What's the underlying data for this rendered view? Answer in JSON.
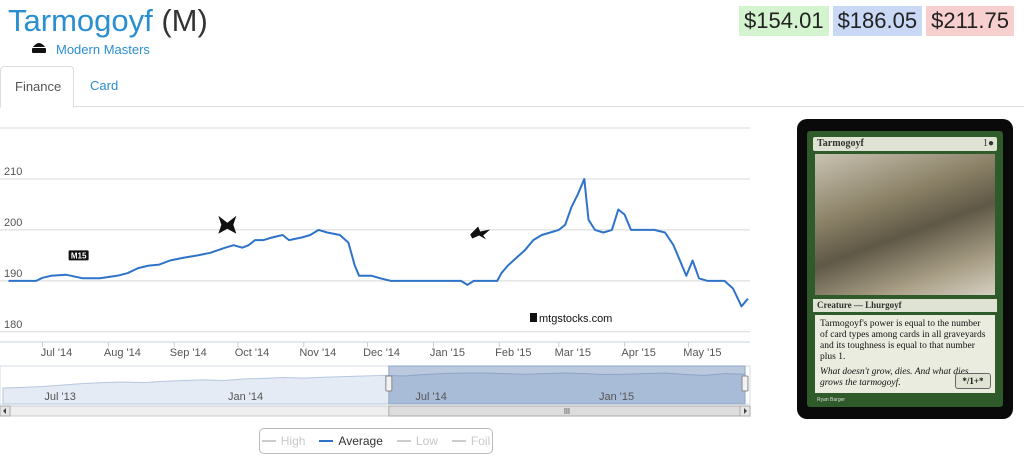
{
  "header": {
    "card_name": "Tarmogoyf",
    "rarity": "(M)",
    "set_icon": "modern-masters-set-icon",
    "set_name": "Modern Masters"
  },
  "prices": {
    "low": "$154.01",
    "average": "$186.05",
    "high": "$211.75",
    "colors": {
      "low": "#d4f4cf",
      "average": "#c9d8f5",
      "high": "#f8cfcf"
    }
  },
  "tabs": [
    {
      "label": "Finance",
      "active": true
    },
    {
      "label": "Card",
      "active": false
    }
  ],
  "chart_data": {
    "type": "line",
    "x_tick_labels": [
      "Jul '14",
      "Aug '14",
      "Sep '14",
      "Oct '14",
      "Nov '14",
      "Dec '14",
      "Jan '15",
      "Feb '15",
      "Mar '15",
      "Apr '15",
      "May '15"
    ],
    "y_tick_labels": [
      "180",
      "190",
      "200",
      "210"
    ],
    "ylim": [
      178,
      220
    ],
    "grid": true,
    "series": [
      {
        "name": "Average",
        "color": "#2f73c8",
        "points": [
          [
            "2014-06-15",
            190
          ],
          [
            "2014-06-28",
            190
          ],
          [
            "2014-07-01",
            190.6
          ],
          [
            "2014-07-05",
            191
          ],
          [
            "2014-07-12",
            191.2
          ],
          [
            "2014-07-20",
            190.5
          ],
          [
            "2014-07-28",
            190.5
          ],
          [
            "2014-08-05",
            191
          ],
          [
            "2014-08-10",
            191.5
          ],
          [
            "2014-08-15",
            192.5
          ],
          [
            "2014-08-20",
            193
          ],
          [
            "2014-08-25",
            193.2
          ],
          [
            "2014-08-30",
            194
          ],
          [
            "2014-09-05",
            194.5
          ],
          [
            "2014-09-12",
            195
          ],
          [
            "2014-09-18",
            195.5
          ],
          [
            "2014-09-25",
            196.5
          ],
          [
            "2014-09-29",
            197
          ],
          [
            "2014-10-03",
            196.5
          ],
          [
            "2014-10-06",
            197
          ],
          [
            "2014-10-09",
            198
          ],
          [
            "2014-10-13",
            198
          ],
          [
            "2014-10-17",
            198.5
          ],
          [
            "2014-10-22",
            199
          ],
          [
            "2014-10-25",
            198
          ],
          [
            "2014-10-31",
            198.5
          ],
          [
            "2014-11-04",
            199
          ],
          [
            "2014-11-08",
            200
          ],
          [
            "2014-11-12",
            199.5
          ],
          [
            "2014-11-18",
            199
          ],
          [
            "2014-11-22",
            197.5
          ],
          [
            "2014-11-25",
            193
          ],
          [
            "2014-11-27",
            191
          ],
          [
            "2014-12-03",
            191
          ],
          [
            "2014-12-07",
            190.5
          ],
          [
            "2014-12-12",
            190
          ],
          [
            "2014-12-20",
            190
          ],
          [
            "2014-12-30",
            190
          ],
          [
            "2015-01-08",
            190
          ],
          [
            "2015-01-14",
            190
          ],
          [
            "2015-01-17",
            189.2
          ],
          [
            "2015-01-20",
            190
          ],
          [
            "2015-01-25",
            190
          ],
          [
            "2015-01-31",
            190
          ],
          [
            "2015-02-02",
            191.5
          ],
          [
            "2015-02-05",
            193
          ],
          [
            "2015-02-09",
            194.5
          ],
          [
            "2015-02-13",
            196
          ],
          [
            "2015-02-17",
            198
          ],
          [
            "2015-02-21",
            199
          ],
          [
            "2015-02-25",
            199.5
          ],
          [
            "2015-03-01",
            200
          ],
          [
            "2015-03-04",
            201
          ],
          [
            "2015-03-07",
            204.5
          ],
          [
            "2015-03-10",
            207
          ],
          [
            "2015-03-13",
            210
          ],
          [
            "2015-03-15",
            202
          ],
          [
            "2015-03-18",
            200
          ],
          [
            "2015-03-22",
            199.5
          ],
          [
            "2015-03-26",
            200
          ],
          [
            "2015-03-29",
            204
          ],
          [
            "2015-04-01",
            203
          ],
          [
            "2015-04-04",
            200
          ],
          [
            "2015-04-10",
            200
          ],
          [
            "2015-04-15",
            200
          ],
          [
            "2015-04-20",
            199.5
          ],
          [
            "2015-04-24",
            197
          ],
          [
            "2015-04-27",
            194
          ],
          [
            "2015-04-30",
            191
          ],
          [
            "2015-05-03",
            194
          ],
          [
            "2015-05-06",
            190.5
          ],
          [
            "2015-05-10",
            190
          ],
          [
            "2015-05-18",
            190
          ],
          [
            "2015-05-22",
            188.5
          ],
          [
            "2015-05-26",
            185
          ],
          [
            "2015-05-29",
            186.5
          ]
        ]
      }
    ],
    "annotations": [
      {
        "label": "M15",
        "date": "2014-07-18",
        "value": 195
      },
      {
        "label": "Khans of Tarkir",
        "date": "2014-09-26",
        "value": 201
      },
      {
        "label": "Fate Reforged",
        "date": "2015-01-23",
        "value": 199.5
      }
    ],
    "watermark": "mtgstocks.com",
    "navigator": {
      "x_tick_labels": [
        "Jul '13",
        "Jan '14",
        "Jul '14",
        "Jan '15"
      ],
      "values": [
        0.6,
        0.58,
        0.55,
        0.5,
        0.45,
        0.42,
        0.4,
        0.42,
        0.38,
        0.35,
        0.33,
        0.35,
        0.3,
        0.28,
        0.25,
        0.27,
        0.24,
        0.22,
        0.2,
        0.18,
        0.2,
        0.15,
        0.12,
        0.1,
        0.1,
        0.12,
        0.14,
        0.12,
        0.1,
        0.12,
        0.15,
        0.14,
        0.12,
        0.1,
        0.15,
        0.18,
        0.12,
        0.14
      ],
      "selected_range": [
        0.52,
        1.0
      ]
    },
    "legend": [
      {
        "label": "High",
        "active": false
      },
      {
        "label": "Average",
        "active": true
      },
      {
        "label": "Low",
        "active": false
      },
      {
        "label": "Foil",
        "active": false
      }
    ]
  },
  "card_image": {
    "name": "Tarmogoyf",
    "mana_cost": "1●",
    "type_line": "Creature — Lhurgoyf",
    "rules_text": "Tarmogoyf's power is equal to the number of card types among cards in all graveyards and its toughness is equal to that number plus 1.",
    "flavor_text": "What doesn't grow, dies. And what dies grows the tarmogoyf.",
    "power_toughness": "*/1+*",
    "artist": "Ryan Barger"
  }
}
